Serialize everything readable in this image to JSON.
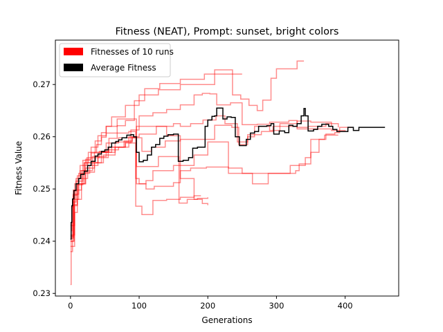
{
  "chart_data": {
    "type": "line",
    "title": "Fitness (NEAT), Prompt: sunset, bright colors",
    "xlabel": "Generations",
    "ylabel": "Fitness Value",
    "xlim": [
      -22,
      478
    ],
    "ylim": [
      0.2295,
      0.2785
    ],
    "xticks": [
      0,
      100,
      200,
      300,
      400
    ],
    "yticks": [
      0.23,
      0.24,
      0.25,
      0.26,
      0.27
    ],
    "grid": false,
    "legend_position": "upper-left",
    "legend": [
      {
        "label": "Fitnesses of 10 runs",
        "color": "#ff0000"
      },
      {
        "label": "Average Fitness",
        "color": "#000000"
      }
    ],
    "run_color": "#ff0000",
    "average_color": "#000000",
    "series": [
      {
        "values": [
          [
            0,
            0.2317
          ],
          [
            1,
            0.242
          ],
          [
            2,
            0.2466
          ],
          [
            4,
            0.2498
          ],
          [
            8,
            0.252
          ],
          [
            14,
            0.2535
          ],
          [
            22,
            0.2557
          ],
          [
            30,
            0.2569
          ],
          [
            38,
            0.2585
          ],
          [
            45,
            0.2599
          ],
          [
            52,
            0.2607
          ],
          [
            60,
            0.2607
          ],
          [
            68,
            0.2621
          ],
          [
            80,
            0.2631
          ],
          [
            93,
            0.2669
          ],
          [
            100,
            0.2669
          ],
          [
            108,
            0.2692
          ],
          [
            130,
            0.2702
          ],
          [
            160,
            0.271
          ],
          [
            178,
            0.271
          ],
          [
            195,
            0.272
          ],
          [
            250,
            0.272
          ]
        ]
      },
      {
        "values": [
          [
            0,
            0.238
          ],
          [
            3,
            0.2475
          ],
          [
            8,
            0.2515
          ],
          [
            18,
            0.2555
          ],
          [
            30,
            0.258
          ],
          [
            40,
            0.2602
          ],
          [
            52,
            0.262
          ],
          [
            60,
            0.2638
          ],
          [
            68,
            0.2638
          ],
          [
            80,
            0.266
          ],
          [
            100,
            0.268
          ],
          [
            128,
            0.269
          ],
          [
            160,
            0.27
          ],
          [
            200,
            0.27
          ],
          [
            210,
            0.2728
          ],
          [
            228,
            0.2728
          ],
          [
            236,
            0.268
          ],
          [
            248,
            0.2672
          ],
          [
            260,
            0.266
          ],
          [
            272,
            0.265
          ],
          [
            280,
            0.267
          ],
          [
            292,
            0.2712
          ],
          [
            300,
            0.273
          ],
          [
            325,
            0.273
          ],
          [
            330,
            0.2745
          ],
          [
            340,
            0.2745
          ]
        ]
      },
      {
        "values": [
          [
            0,
            0.2405
          ],
          [
            4,
            0.249
          ],
          [
            12,
            0.253
          ],
          [
            20,
            0.255
          ],
          [
            26,
            0.257
          ],
          [
            36,
            0.2592
          ],
          [
            45,
            0.2608
          ],
          [
            52,
            0.262
          ],
          [
            68,
            0.2634
          ],
          [
            90,
            0.2634
          ],
          [
            96,
            0.2543
          ],
          [
            110,
            0.2543
          ],
          [
            128,
            0.2562
          ],
          [
            150,
            0.2562
          ],
          [
            158,
            0.2473
          ],
          [
            170,
            0.248
          ],
          [
            185,
            0.2482
          ],
          [
            200,
            0.2484
          ]
        ]
      },
      {
        "values": [
          [
            0,
            0.241
          ],
          [
            4,
            0.2488
          ],
          [
            10,
            0.2525
          ],
          [
            14,
            0.2545
          ],
          [
            24,
            0.256
          ],
          [
            42,
            0.2572
          ],
          [
            56,
            0.2597
          ],
          [
            68,
            0.2607
          ],
          [
            85,
            0.261
          ],
          [
            95,
            0.2467
          ],
          [
            104,
            0.2451
          ],
          [
            112,
            0.2451
          ],
          [
            120,
            0.2478
          ],
          [
            140,
            0.248
          ],
          [
            160,
            0.2484
          ],
          [
            180,
            0.2487
          ],
          [
            190,
            0.2487
          ]
        ]
      },
      {
        "values": [
          [
            0,
            0.239
          ],
          [
            6,
            0.2455
          ],
          [
            10,
            0.248
          ],
          [
            16,
            0.251
          ],
          [
            22,
            0.2532
          ],
          [
            35,
            0.255
          ],
          [
            48,
            0.2565
          ],
          [
            65,
            0.258
          ],
          [
            78,
            0.2592
          ],
          [
            90,
            0.26
          ],
          [
            96,
            0.262
          ],
          [
            118,
            0.262
          ],
          [
            140,
            0.2602
          ],
          [
            160,
            0.252
          ],
          [
            180,
            0.248
          ],
          [
            192,
            0.2472
          ],
          [
            200,
            0.2469
          ]
        ]
      },
      {
        "values": [
          [
            0,
            0.24
          ],
          [
            5,
            0.247
          ],
          [
            10,
            0.2508
          ],
          [
            18,
            0.253
          ],
          [
            28,
            0.2545
          ],
          [
            40,
            0.256
          ],
          [
            55,
            0.2575
          ],
          [
            70,
            0.258
          ],
          [
            80,
            0.2588
          ],
          [
            88,
            0.2598
          ],
          [
            96,
            0.251
          ],
          [
            110,
            0.2516
          ],
          [
            120,
            0.2535
          ],
          [
            150,
            0.2545
          ],
          [
            180,
            0.2565
          ],
          [
            200,
            0.259
          ],
          [
            230,
            0.253
          ],
          [
            300,
            0.253
          ],
          [
            320,
            0.2545
          ],
          [
            342,
            0.256
          ],
          [
            350,
            0.2595
          ],
          [
            370,
            0.2603
          ],
          [
            390,
            0.2603
          ]
        ]
      },
      {
        "values": [
          [
            0,
            0.24
          ],
          [
            5,
            0.2468
          ],
          [
            10,
            0.251
          ],
          [
            22,
            0.254
          ],
          [
            35,
            0.257
          ],
          [
            55,
            0.258
          ],
          [
            80,
            0.259
          ],
          [
            90,
            0.2598
          ],
          [
            104,
            0.2572
          ],
          [
            118,
            0.258
          ],
          [
            138,
            0.2592
          ],
          [
            160,
            0.2595
          ],
          [
            200,
            0.2595
          ],
          [
            210,
            0.2622
          ],
          [
            235,
            0.2618
          ],
          [
            245,
            0.2585
          ],
          [
            258,
            0.26
          ],
          [
            268,
            0.262
          ],
          [
            290,
            0.2612
          ],
          [
            305,
            0.2625
          ],
          [
            330,
            0.263
          ],
          [
            350,
            0.2628
          ],
          [
            380,
            0.262
          ]
        ]
      },
      {
        "values": [
          [
            0,
            0.243
          ],
          [
            6,
            0.251
          ],
          [
            20,
            0.255
          ],
          [
            40,
            0.257
          ],
          [
            60,
            0.258
          ],
          [
            85,
            0.2588
          ],
          [
            95,
            0.252
          ],
          [
            100,
            0.251
          ],
          [
            110,
            0.25
          ],
          [
            122,
            0.2505
          ],
          [
            150,
            0.2512
          ],
          [
            160,
            0.2535
          ],
          [
            175,
            0.254
          ],
          [
            198,
            0.2542
          ],
          [
            212,
            0.2542
          ],
          [
            230,
            0.254
          ],
          [
            250,
            0.253
          ],
          [
            265,
            0.251
          ],
          [
            288,
            0.253
          ],
          [
            310,
            0.253
          ],
          [
            328,
            0.2535
          ],
          [
            333,
            0.2548
          ],
          [
            350,
            0.257
          ],
          [
            362,
            0.2595
          ],
          [
            372,
            0.2605
          ],
          [
            385,
            0.2608
          ],
          [
            392,
            0.2618
          ],
          [
            410,
            0.2618
          ]
        ]
      },
      {
        "values": [
          [
            0,
            0.2412
          ],
          [
            6,
            0.2498
          ],
          [
            16,
            0.2535
          ],
          [
            32,
            0.2562
          ],
          [
            52,
            0.2588
          ],
          [
            70,
            0.2598
          ],
          [
            88,
            0.2613
          ],
          [
            100,
            0.264
          ],
          [
            120,
            0.2646
          ],
          [
            140,
            0.2652
          ],
          [
            160,
            0.2661
          ],
          [
            180,
            0.268
          ],
          [
            192,
            0.2683
          ],
          [
            203,
            0.2682
          ],
          [
            213,
            0.2661
          ],
          [
            233,
            0.2665
          ],
          [
            250,
            0.2623
          ],
          [
            272,
            0.2624
          ],
          [
            290,
            0.2628
          ],
          [
            318,
            0.2631
          ],
          [
            330,
            0.2615
          ],
          [
            345,
            0.2615
          ],
          [
            360,
            0.2615
          ],
          [
            380,
            0.2612
          ],
          [
            400,
            0.261
          ]
        ]
      },
      {
        "values": [
          [
            0,
            0.2408
          ],
          [
            5,
            0.248
          ],
          [
            12,
            0.252
          ],
          [
            25,
            0.255
          ],
          [
            45,
            0.257
          ],
          [
            65,
            0.259
          ],
          [
            85,
            0.26
          ],
          [
            100,
            0.2605
          ],
          [
            125,
            0.262
          ],
          [
            150,
            0.2625
          ],
          [
            160,
            0.262
          ],
          [
            175,
            0.2625
          ],
          [
            193,
            0.2632
          ],
          [
            200,
            0.2632
          ],
          [
            212,
            0.264
          ],
          [
            225,
            0.2625
          ],
          [
            243,
            0.259
          ],
          [
            258,
            0.2604
          ],
          [
            278,
            0.261
          ],
          [
            295,
            0.262
          ],
          [
            316,
            0.262
          ],
          [
            330,
            0.2618
          ],
          [
            346,
            0.262
          ],
          [
            372,
            0.2625
          ],
          [
            390,
            0.2618
          ]
        ]
      }
    ],
    "average": {
      "name": "Average Fitness",
      "values": [
        [
          0,
          0.2404
        ],
        [
          1,
          0.2436
        ],
        [
          2,
          0.2468
        ],
        [
          3,
          0.2481
        ],
        [
          5,
          0.2497
        ],
        [
          8,
          0.251
        ],
        [
          12,
          0.252
        ],
        [
          15,
          0.2528
        ],
        [
          20,
          0.2534
        ],
        [
          25,
          0.2545
        ],
        [
          30,
          0.2553
        ],
        [
          36,
          0.2563
        ],
        [
          40,
          0.2567
        ],
        [
          45,
          0.2572
        ],
        [
          50,
          0.2575
        ],
        [
          55,
          0.258
        ],
        [
          60,
          0.2588
        ],
        [
          66,
          0.2591
        ],
        [
          70,
          0.2594
        ],
        [
          75,
          0.2598
        ],
        [
          82,
          0.2603
        ],
        [
          88,
          0.2604
        ],
        [
          92,
          0.26
        ],
        [
          96,
          0.257
        ],
        [
          100,
          0.2552
        ],
        [
          106,
          0.2555
        ],
        [
          112,
          0.2565
        ],
        [
          118,
          0.258
        ],
        [
          124,
          0.2585
        ],
        [
          130,
          0.2597
        ],
        [
          136,
          0.2601
        ],
        [
          142,
          0.2604
        ],
        [
          150,
          0.2605
        ],
        [
          155,
          0.2605
        ],
        [
          157,
          0.2553
        ],
        [
          164,
          0.2555
        ],
        [
          172,
          0.256
        ],
        [
          178,
          0.2578
        ],
        [
          185,
          0.258
        ],
        [
          190,
          0.258
        ],
        [
          196,
          0.262
        ],
        [
          200,
          0.2632
        ],
        [
          206,
          0.2639
        ],
        [
          210,
          0.264
        ],
        [
          213,
          0.2655
        ],
        [
          220,
          0.2655
        ],
        [
          222,
          0.2634
        ],
        [
          228,
          0.2638
        ],
        [
          234,
          0.2637
        ],
        [
          240,
          0.26
        ],
        [
          246,
          0.2583
        ],
        [
          251,
          0.2583
        ],
        [
          256,
          0.2595
        ],
        [
          262,
          0.2607
        ],
        [
          268,
          0.261
        ],
        [
          274,
          0.262
        ],
        [
          280,
          0.262
        ],
        [
          286,
          0.2621
        ],
        [
          292,
          0.2625
        ],
        [
          296,
          0.2605
        ],
        [
          304,
          0.2611
        ],
        [
          312,
          0.2608
        ],
        [
          318,
          0.2622
        ],
        [
          324,
          0.262
        ],
        [
          330,
          0.2625
        ],
        [
          336,
          0.264
        ],
        [
          340,
          0.2654
        ],
        [
          342,
          0.264
        ],
        [
          346,
          0.2611
        ],
        [
          354,
          0.2614
        ],
        [
          360,
          0.262
        ],
        [
          366,
          0.2624
        ],
        [
          372,
          0.2624
        ],
        [
          376,
          0.262
        ],
        [
          382,
          0.2614
        ],
        [
          388,
          0.261
        ],
        [
          396,
          0.261
        ],
        [
          404,
          0.2618
        ],
        [
          412,
          0.2612
        ],
        [
          420,
          0.2618
        ],
        [
          430,
          0.2618
        ],
        [
          440,
          0.2618
        ],
        [
          458,
          0.2618
        ]
      ]
    }
  }
}
